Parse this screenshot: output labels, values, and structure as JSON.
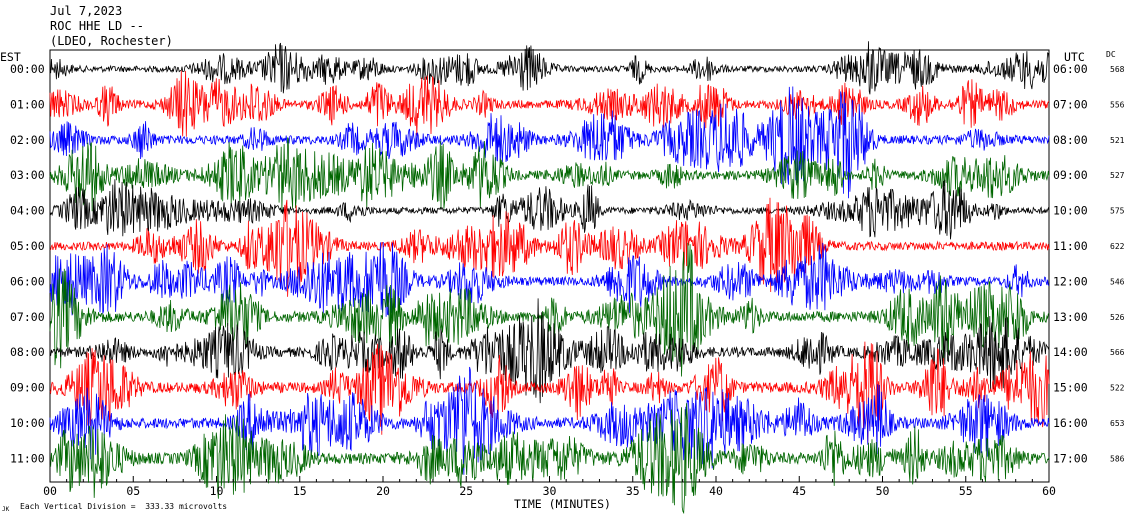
{
  "header": {
    "date": "Jul 7,2023",
    "station": "ROC HHE LD --",
    "location": "(LDEO, Rochester)"
  },
  "left_axis_title": "EST",
  "right_axis_title": "UTC",
  "dc_title": "DC",
  "xlabel": "TIME (MINUTES)",
  "footnote": "Each Vertical Division =  333.33 microvolts",
  "corner_mark": "JK",
  "colors": {
    "black": "#000000",
    "red": "#ff0000",
    "blue": "#0000ff",
    "green": "#006600"
  },
  "chart_data": {
    "type": "line",
    "title": "ROC HHE LD --",
    "xlabel": "TIME (MINUTES)",
    "xlim": [
      0,
      60
    ],
    "xticks": [
      "00",
      "05",
      "10",
      "15",
      "20",
      "25",
      "30",
      "35",
      "40",
      "45",
      "50",
      "55",
      "60"
    ],
    "rows": [
      {
        "est": "00:00",
        "utc": "06:00",
        "dc": "568",
        "color": "#000000",
        "amplitude": 0.55
      },
      {
        "est": "01:00",
        "utc": "07:00",
        "dc": "556",
        "color": "#ff0000",
        "amplitude": 0.75
      },
      {
        "est": "02:00",
        "utc": "08:00",
        "dc": "521",
        "color": "#0000ff",
        "amplitude": 0.8
      },
      {
        "est": "03:00",
        "utc": "09:00",
        "dc": "527",
        "color": "#006600",
        "amplitude": 0.8
      },
      {
        "est": "04:00",
        "utc": "10:00",
        "dc": "575",
        "color": "#000000",
        "amplitude": 0.6
      },
      {
        "est": "05:00",
        "utc": "11:00",
        "dc": "622",
        "color": "#ff0000",
        "amplitude": 0.75
      },
      {
        "est": "06:00",
        "utc": "12:00",
        "dc": "546",
        "color": "#0000ff",
        "amplitude": 0.8
      },
      {
        "est": "07:00",
        "utc": "13:00",
        "dc": "526",
        "color": "#006600",
        "amplitude": 0.95
      },
      {
        "est": "08:00",
        "utc": "14:00",
        "dc": "566",
        "color": "#000000",
        "amplitude": 0.85
      },
      {
        "est": "09:00",
        "utc": "15:00",
        "dc": "522",
        "color": "#ff0000",
        "amplitude": 0.95
      },
      {
        "est": "10:00",
        "utc": "16:00",
        "dc": "653",
        "color": "#0000ff",
        "amplitude": 0.95
      },
      {
        "est": "11:00",
        "utc": "17:00",
        "dc": "586",
        "color": "#006600",
        "amplitude": 1.0
      }
    ]
  }
}
